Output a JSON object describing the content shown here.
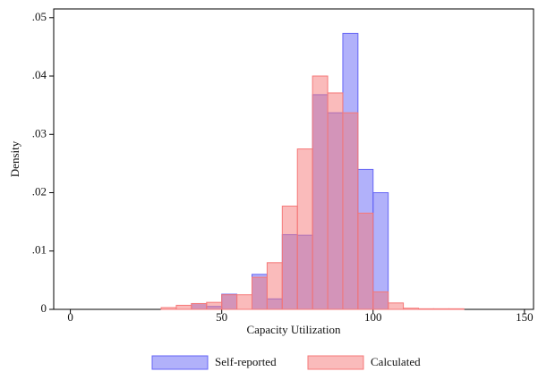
{
  "chart_data": {
    "type": "histogram",
    "x_label": "Capacity Utilization",
    "y_label": "Density",
    "bins": [
      30,
      35,
      40,
      45,
      50,
      55,
      60,
      65,
      70,
      75,
      80,
      85,
      90,
      95,
      100,
      105,
      110,
      115,
      120,
      125,
      130
    ],
    "series": [
      {
        "name": "Self-reported",
        "color": "#6464f5",
        "values": [
          0,
          0,
          0.001,
          0.0005,
          0.0026,
          0,
          0.006,
          0.0018,
          0.0128,
          0.0127,
          0.0368,
          0.0337,
          0.0473,
          0.024,
          0.02,
          0,
          0,
          0,
          0,
          0
        ]
      },
      {
        "name": "Calculated",
        "color": "#f57878",
        "values": [
          0.0003,
          0.0007,
          0.001,
          0.0012,
          0.0025,
          0.0025,
          0.0055,
          0.008,
          0.0177,
          0.0275,
          0.04,
          0.0371,
          0.0337,
          0.0165,
          0.003,
          0.0011,
          0.0002,
          0.0001,
          0.0001,
          0.0001
        ]
      }
    ],
    "xlim": [
      -5.5,
      153
    ],
    "xticks": [
      0,
      50,
      100,
      150
    ],
    "ylim": [
      0,
      0.0515
    ],
    "yticks": [
      0,
      {
        "value": 0.01,
        "label": ".01"
      },
      {
        "value": 0.02,
        "label": ".02"
      },
      {
        "value": 0.03,
        "label": ".03"
      },
      {
        "value": 0.04,
        "label": ".04"
      },
      {
        "value": 0.05,
        "label": ".05"
      }
    ]
  }
}
